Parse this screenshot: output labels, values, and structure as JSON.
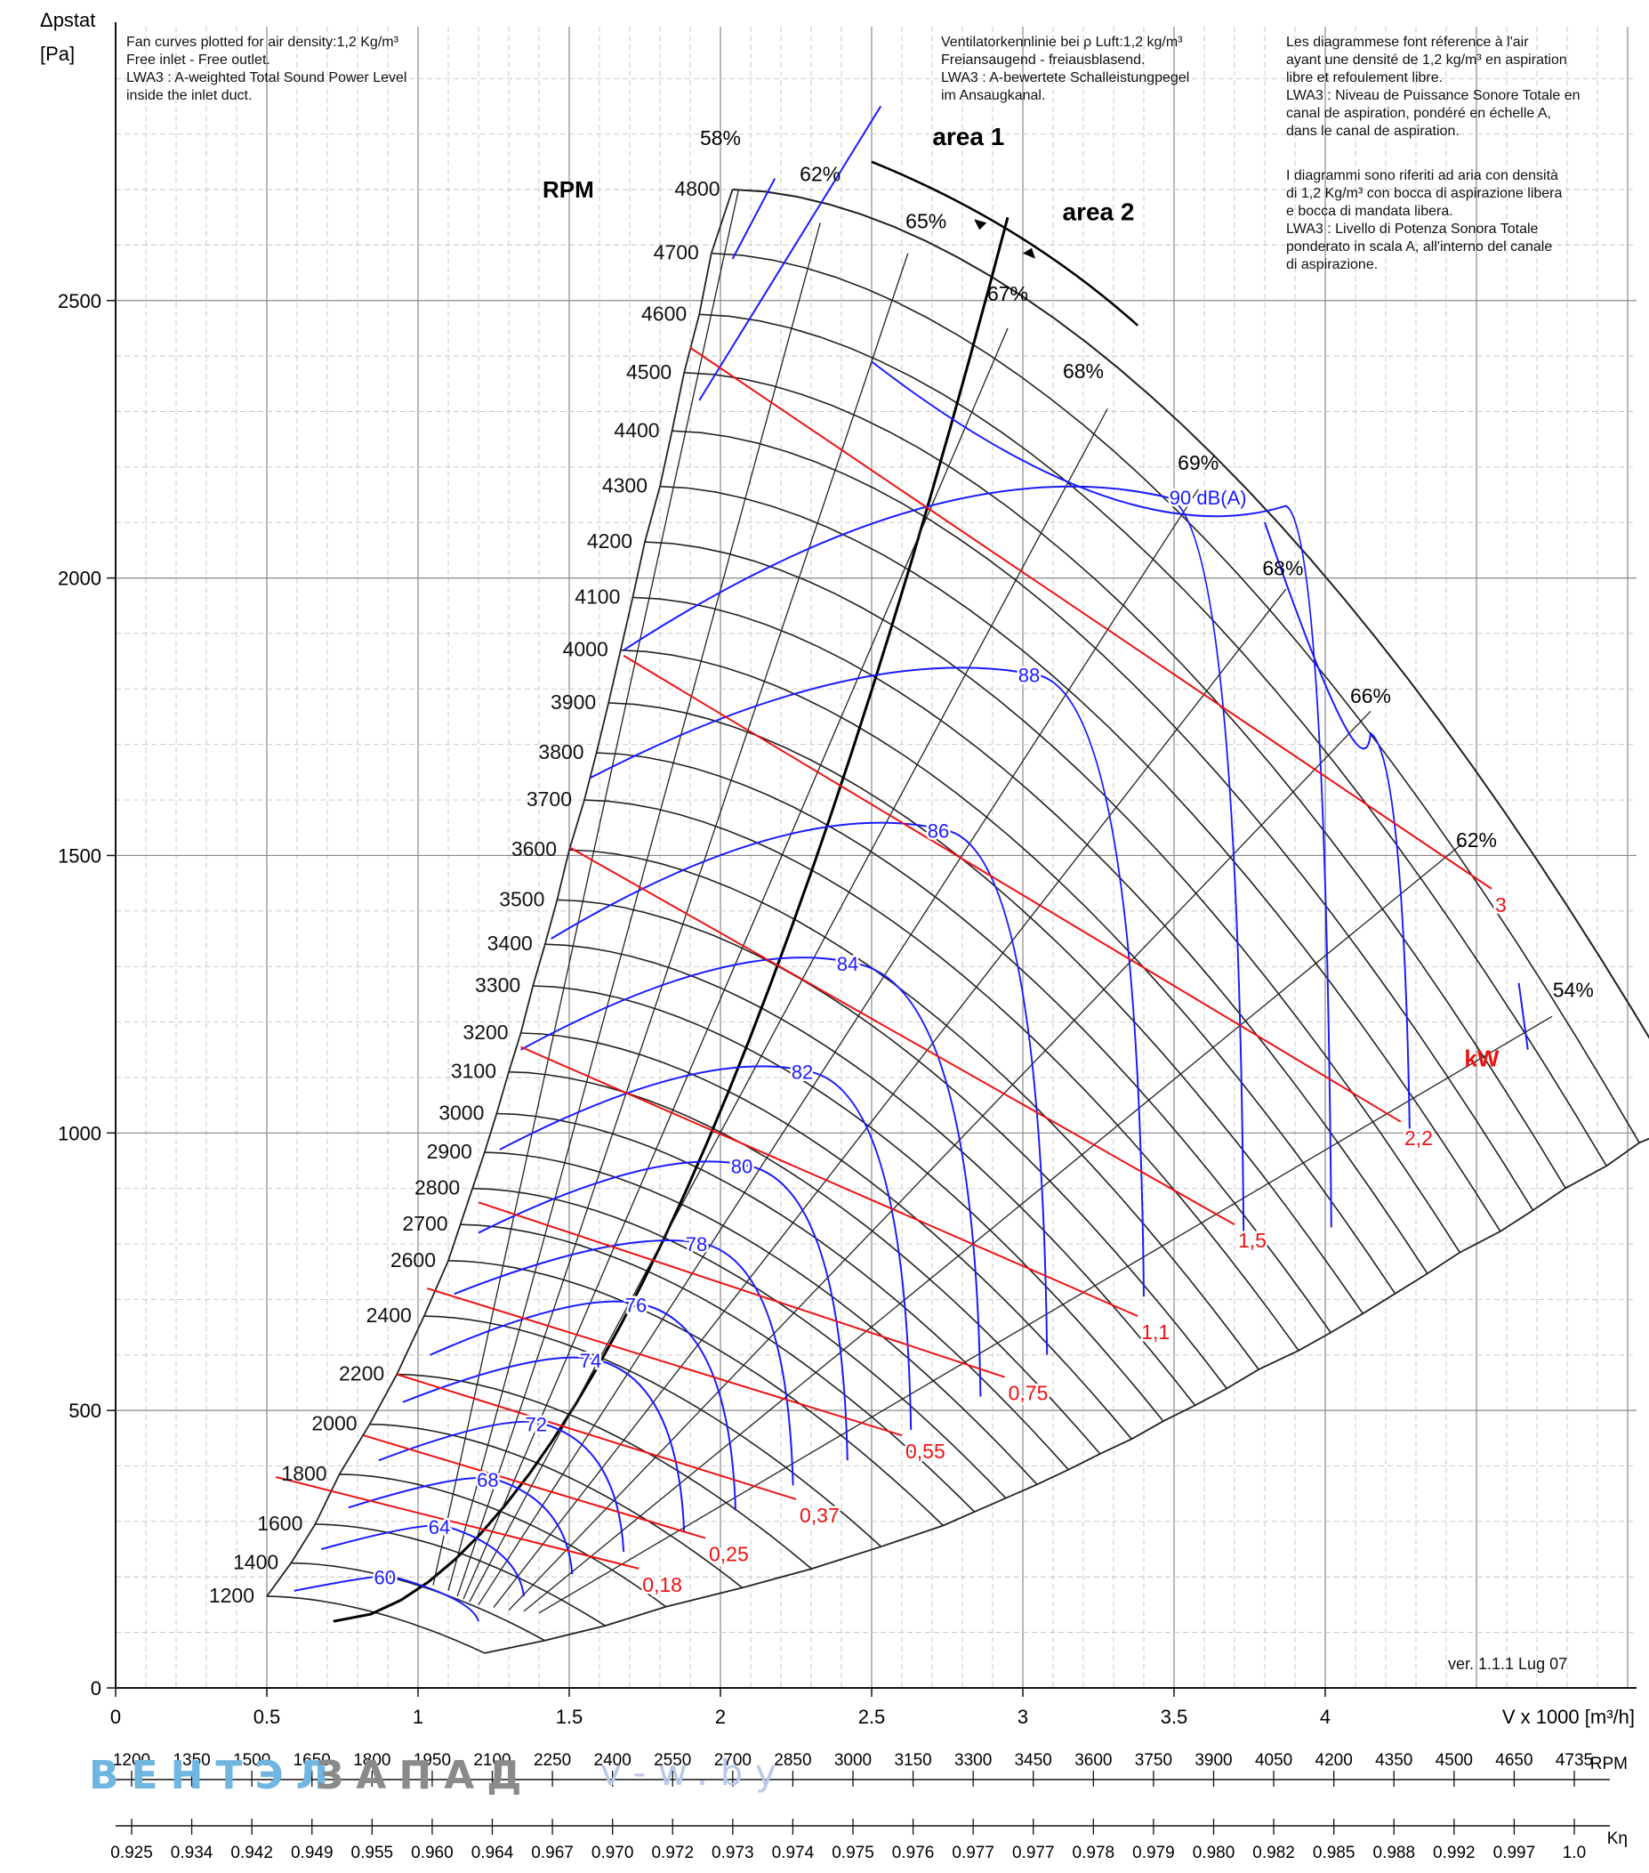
{
  "notes": {
    "en": "Fan curves plotted for air density:1,2 Kg/m³\nFree inlet - Free outlet.\nLWA3 : A-weighted Total Sound Power Level\ninside the inlet duct.",
    "de": "Ventilatorkennlinie bei ρ Luft:1,2 kg/m³\nFreiansaugend - freiausblasend.\nLWA3 : A-bewertete Schalleistungpegel\nim Ansaugkanal.",
    "fr": "Les diagrammese font réference à l'air\nayant une densité de 1,2 kg/m³ en aspiration\nlibre et refoulement libre.\nLWA3 : Niveau de Puissance Sonore Totale en\ncanal de aspiration, pondéré en échelle A,\ndans le canal de aspiration.",
    "it": "I diagrammi sono riferiti ad aria con densità\ndi 1,2 Kg/m³ con bocca di aspirazione libera\ne bocca di mandata libera.\nLWA3 : Livello di Potenza Sonora Totale\nponderato in scala A, all'interno del canale\ndi aspirazione."
  },
  "version": "ver. 1.1.1 Lug 07",
  "watermark": {
    "left": "ВЕНТЭЛ",
    "mid": "ЗАПАД",
    "right": "v-w.by"
  },
  "colors": {
    "rpm": "#222222",
    "sound": "#1a1aff",
    "power": "#ee1111",
    "grid": "#999999"
  },
  "chart_data": {
    "type": "line",
    "x_axis": {
      "label": "V x 1000 [m³/h]",
      "range": [
        0,
        5
      ],
      "ticks": [
        "0",
        "0.5",
        "1",
        "1.5",
        "2",
        "2.5",
        "3",
        "3.5",
        "4"
      ]
    },
    "y_axis": {
      "label_top": "Δpstat",
      "label_unit": "[Pa]",
      "range": [
        0,
        2900
      ],
      "ticks": [
        "0",
        "500",
        "1000",
        "1500",
        "2000",
        "2500"
      ]
    },
    "grid": true,
    "rpm_title": "RPM",
    "rpm_curves": [
      {
        "rpm": "1200",
        "v0": 0.5,
        "p0": 165
      },
      {
        "rpm": "1400",
        "v0": 0.58,
        "p0": 225
      },
      {
        "rpm": "1600",
        "v0": 0.66,
        "p0": 295
      },
      {
        "rpm": "1800",
        "v0": 0.74,
        "p0": 385
      },
      {
        "rpm": "2000",
        "v0": 0.84,
        "p0": 475
      },
      {
        "rpm": "2200",
        "v0": 0.93,
        "p0": 565
      },
      {
        "rpm": "2400",
        "v0": 1.02,
        "p0": 670
      },
      {
        "rpm": "2600",
        "v0": 1.1,
        "p0": 770
      },
      {
        "rpm": "2700",
        "v0": 1.14,
        "p0": 835
      },
      {
        "rpm": "2800",
        "v0": 1.18,
        "p0": 900
      },
      {
        "rpm": "2900",
        "v0": 1.22,
        "p0": 965
      },
      {
        "rpm": "3000",
        "v0": 1.26,
        "p0": 1035
      },
      {
        "rpm": "3100",
        "v0": 1.3,
        "p0": 1110
      },
      {
        "rpm": "3200",
        "v0": 1.34,
        "p0": 1180
      },
      {
        "rpm": "3300",
        "v0": 1.38,
        "p0": 1265
      },
      {
        "rpm": "3400",
        "v0": 1.42,
        "p0": 1340
      },
      {
        "rpm": "3500",
        "v0": 1.46,
        "p0": 1420
      },
      {
        "rpm": "3600",
        "v0": 1.5,
        "p0": 1510
      },
      {
        "rpm": "3700",
        "v0": 1.55,
        "p0": 1600
      },
      {
        "rpm": "3800",
        "v0": 1.59,
        "p0": 1685
      },
      {
        "rpm": "3900",
        "v0": 1.63,
        "p0": 1775
      },
      {
        "rpm": "4000",
        "v0": 1.67,
        "p0": 1870
      },
      {
        "rpm": "4100",
        "v0": 1.71,
        "p0": 1965
      },
      {
        "rpm": "4200",
        "v0": 1.75,
        "p0": 2065
      },
      {
        "rpm": "4300",
        "v0": 1.8,
        "p0": 2165
      },
      {
        "rpm": "4400",
        "v0": 1.84,
        "p0": 2265
      },
      {
        "rpm": "4500",
        "v0": 1.88,
        "p0": 2370
      },
      {
        "rpm": "4600",
        "v0": 1.93,
        "p0": 2475
      },
      {
        "rpm": "4700",
        "v0": 1.97,
        "p0": 2585
      },
      {
        "rpm": "4800",
        "v0": 2.04,
        "p0": 2700
      }
    ],
    "efficiency_labels": [
      {
        "text": "58%",
        "v": 2.0,
        "p": 2780
      },
      {
        "text": "62%",
        "v": 2.33,
        "p": 2715
      },
      {
        "text": "65%",
        "v": 2.68,
        "p": 2630
      },
      {
        "text": "67%",
        "v": 2.95,
        "p": 2500
      },
      {
        "text": "68%",
        "v": 3.2,
        "p": 2360
      },
      {
        "text": "69%",
        "v": 3.58,
        "p": 2195
      },
      {
        "text": "68%",
        "v": 3.86,
        "p": 2005
      },
      {
        "text": "66%",
        "v": 4.15,
        "p": 1775
      },
      {
        "text": "62%",
        "v": 4.5,
        "p": 1515
      },
      {
        "text": "54%",
        "v": 4.82,
        "p": 1245
      }
    ],
    "areas": [
      {
        "text": "area 1",
        "v": 2.82,
        "p": 2780
      },
      {
        "text": "area 2",
        "v": 3.25,
        "p": 2645
      }
    ],
    "sound_title": "90 dB(A)",
    "sound_curves": [
      {
        "label": "60",
        "v0": 0.59,
        "p0": 175,
        "vt": 0.92,
        "pt": 200,
        "v1": 1.2,
        "p1": 120
      },
      {
        "label": "64",
        "v0": 0.68,
        "p0": 250,
        "vt": 1.1,
        "pt": 290,
        "v1": 1.35,
        "p1": 165
      },
      {
        "label": "68",
        "v0": 0.77,
        "p0": 325,
        "vt": 1.26,
        "pt": 375,
        "v1": 1.51,
        "p1": 205
      },
      {
        "label": "72",
        "v0": 0.87,
        "p0": 410,
        "vt": 1.42,
        "pt": 475,
        "v1": 1.68,
        "p1": 245
      },
      {
        "label": "74",
        "v0": 0.95,
        "p0": 515,
        "vt": 1.6,
        "pt": 590,
        "v1": 1.88,
        "p1": 280
      },
      {
        "label": "76",
        "v0": 1.04,
        "p0": 600,
        "vt": 1.75,
        "pt": 690,
        "v1": 2.05,
        "p1": 320
      },
      {
        "label": "78",
        "v0": 1.12,
        "p0": 710,
        "vt": 1.95,
        "pt": 800,
        "v1": 2.24,
        "p1": 365
      },
      {
        "label": "80",
        "v0": 1.2,
        "p0": 820,
        "vt": 2.1,
        "pt": 940,
        "v1": 2.42,
        "p1": 410
      },
      {
        "label": "82",
        "v0": 1.27,
        "p0": 970,
        "vt": 2.3,
        "pt": 1110,
        "v1": 2.63,
        "p1": 465
      },
      {
        "label": "84",
        "v0": 1.34,
        "p0": 1150,
        "vt": 2.45,
        "pt": 1305,
        "v1": 2.86,
        "p1": 525
      },
      {
        "label": "86",
        "v0": 1.44,
        "p0": 1350,
        "vt": 2.75,
        "pt": 1545,
        "v1": 3.08,
        "p1": 600
      },
      {
        "label": "88",
        "v0": 1.57,
        "p0": 1640,
        "vt": 3.05,
        "pt": 1825,
        "v1": 3.4,
        "p1": 705
      },
      {
        "label": "90 dB(A)",
        "v0": 1.68,
        "p0": 1870,
        "vt": 3.48,
        "pt": 2145,
        "v1": 3.73,
        "p1": 820
      },
      {
        "label": "",
        "v0": 2.5,
        "p0": 2390,
        "vt": 3.87,
        "pt": 2130,
        "v1": 4.02,
        "p1": 830
      },
      {
        "label": "",
        "v0": 3.8,
        "p0": 2100,
        "vt": 4.15,
        "pt": 1720,
        "v1": 4.28,
        "p1": 975
      }
    ],
    "power_title": "kW",
    "power_lines": [
      {
        "label": "0,18",
        "v0": 0.53,
        "p0": 380,
        "v1": 1.73,
        "p1": 215
      },
      {
        "label": "0,25",
        "v0": 0.82,
        "p0": 455,
        "v1": 1.95,
        "p1": 270
      },
      {
        "label": "0,37",
        "v0": 0.93,
        "p0": 565,
        "v1": 2.25,
        "p1": 340
      },
      {
        "label": "0,55",
        "v0": 1.03,
        "p0": 720,
        "v1": 2.6,
        "p1": 455
      },
      {
        "label": "0,75",
        "v0": 1.2,
        "p0": 875,
        "v1": 2.94,
        "p1": 560
      },
      {
        "label": "1,1",
        "v0": 1.34,
        "p0": 1155,
        "v1": 3.38,
        "p1": 670
      },
      {
        "label": "1,5",
        "v0": 1.5,
        "p0": 1515,
        "v1": 3.7,
        "p1": 835
      },
      {
        "label": "2,2",
        "v0": 1.68,
        "p0": 1860,
        "v1": 4.25,
        "p1": 1020
      },
      {
        "label": "3",
        "v0": 1.9,
        "p0": 2415,
        "v1": 4.55,
        "p1": 1440
      }
    ],
    "rpm_scale": {
      "label": "RPM",
      "ticks": [
        "1200",
        "1350",
        "1500",
        "1650",
        "1800",
        "1950",
        "2100",
        "2250",
        "2400",
        "2550",
        "2700",
        "2850",
        "3000",
        "3150",
        "3300",
        "3450",
        "3600",
        "3750",
        "3900",
        "4050",
        "4200",
        "4350",
        "4500",
        "4650",
        "4735"
      ]
    },
    "k_scale": {
      "label": "Kη",
      "ticks": [
        "0.925",
        "0.934",
        "0.942",
        "0.949",
        "0.955",
        "0.960",
        "0.964",
        "0.967",
        "0.970",
        "0.972",
        "0.973",
        "0.974",
        "0.975",
        "0.976",
        "0.977",
        "0.977",
        "0.978",
        "0.979",
        "0.980",
        "0.982",
        "0.985",
        "0.988",
        "0.992",
        "0.997",
        "1.0"
      ]
    }
  }
}
